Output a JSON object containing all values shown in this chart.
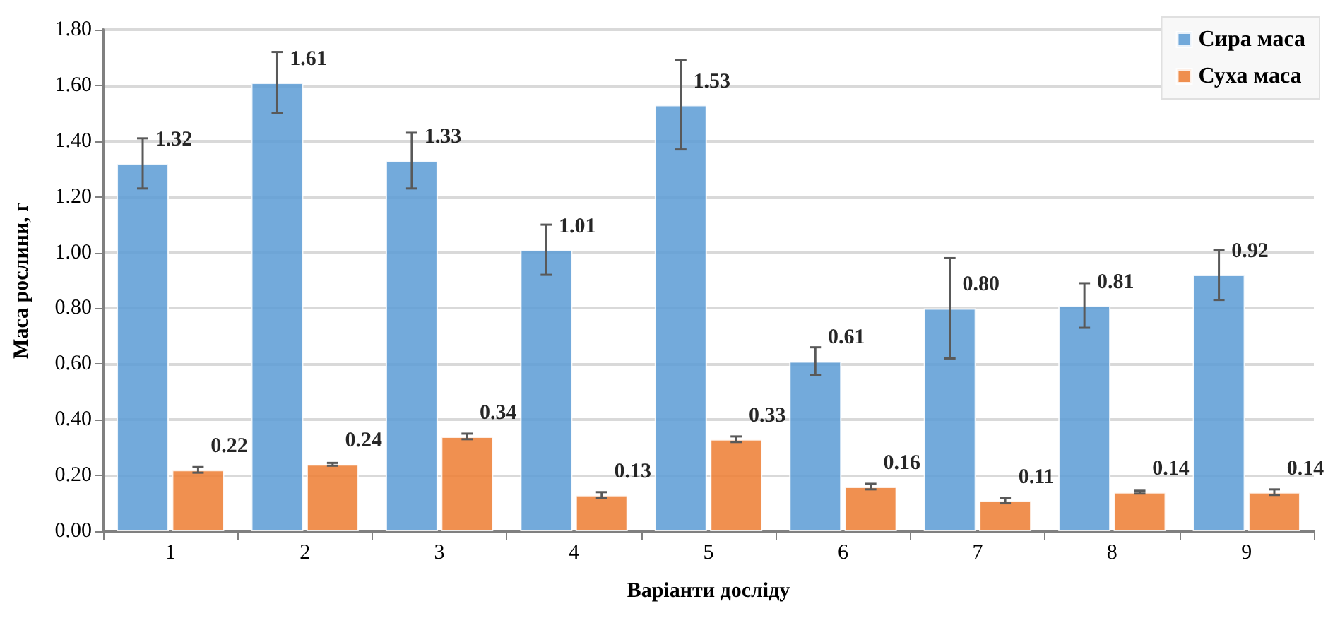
{
  "chart_data": {
    "type": "bar",
    "xlabel": "Варіанти досліду",
    "ylabel": "Маса рослини, г",
    "categories": [
      "1",
      "2",
      "3",
      "4",
      "5",
      "6",
      "7",
      "8",
      "9"
    ],
    "series": [
      {
        "name": "Сира маса",
        "color": "#5b9bd5",
        "values": [
          1.32,
          1.61,
          1.33,
          1.01,
          1.53,
          0.61,
          0.8,
          0.81,
          0.92
        ],
        "errors": [
          0.09,
          0.11,
          0.1,
          0.09,
          0.16,
          0.05,
          0.18,
          0.08,
          0.09
        ],
        "value_labels": [
          "1.32",
          "1.61",
          "1.33",
          "1.01",
          "1.53",
          "0.61",
          "0.80",
          "0.81",
          "0.92"
        ]
      },
      {
        "name": "Суха маса",
        "color": "#ed7d31",
        "values": [
          0.22,
          0.24,
          0.34,
          0.13,
          0.33,
          0.16,
          0.11,
          0.14,
          0.14
        ],
        "errors": [
          0.01,
          0.005,
          0.01,
          0.01,
          0.01,
          0.01,
          0.01,
          0.005,
          0.01
        ],
        "value_labels": [
          "0.22",
          "0.24",
          "0.34",
          "0.13",
          "0.33",
          "0.16",
          "0.11",
          "0.14",
          "0.14"
        ]
      }
    ],
    "ylim": [
      0,
      1.8
    ],
    "yticks": [
      {
        "value": 0,
        "label": "0.00"
      },
      {
        "value": 0.2,
        "label": "0.20"
      },
      {
        "value": 0.4,
        "label": "0.40"
      },
      {
        "value": 0.6,
        "label": "0.60"
      },
      {
        "value": 0.8,
        "label": "0.80"
      },
      {
        "value": 1.0,
        "label": "1.00"
      },
      {
        "value": 1.2,
        "label": "1.20"
      },
      {
        "value": 1.4,
        "label": "1.40"
      },
      {
        "value": 1.6,
        "label": "1.60"
      },
      {
        "value": 1.8,
        "label": "1.80"
      }
    ],
    "grid": "y",
    "legend": "top right"
  }
}
